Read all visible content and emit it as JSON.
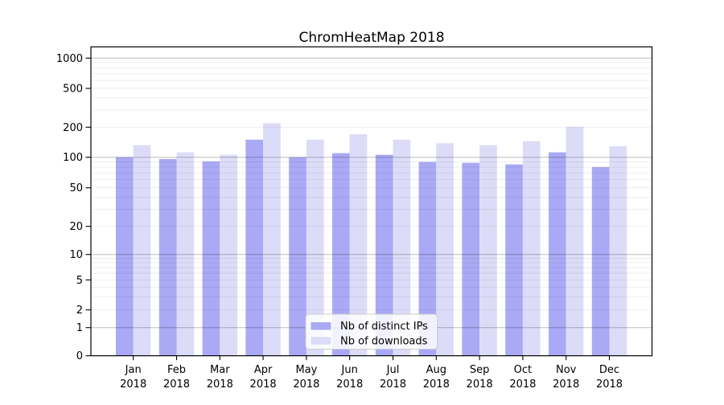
{
  "chart_data": {
    "type": "bar",
    "title": "ChromHeatMap 2018",
    "categories": [
      "Jan",
      "Feb",
      "Mar",
      "Apr",
      "May",
      "Jun",
      "Jul",
      "Aug",
      "Sep",
      "Oct",
      "Nov",
      "Dec"
    ],
    "x_year_label": "2018",
    "series": [
      {
        "name": "Nb of distinct IPs",
        "color": "#a9a9f5",
        "values": [
          100,
          96,
          91,
          150,
          100,
          110,
          106,
          90,
          88,
          85,
          112,
          80
        ]
      },
      {
        "name": "Nb of downloads",
        "color": "#dcdcf8",
        "values": [
          132,
          112,
          106,
          220,
          150,
          170,
          150,
          138,
          132,
          145,
          202,
          129
        ]
      }
    ],
    "y_ticks": [
      0,
      1,
      2,
      5,
      10,
      20,
      50,
      100,
      200,
      500,
      1000
    ],
    "y_tick_labels": [
      "0",
      "1",
      "2",
      "5",
      "10",
      "20",
      "50",
      "100",
      "200",
      "500",
      "1000"
    ],
    "yscale": "log-like (1-2-5 tick sequence with zero baseline)",
    "ylim": [
      0,
      1300
    ],
    "xlabel": "",
    "ylabel": "",
    "grid": "horizontal major and minor gridlines, drawn over bars",
    "legend": {
      "position": "lower-center",
      "entries": [
        "Nb of distinct IPs",
        "Nb of downloads"
      ]
    }
  },
  "colors": {
    "bar_distinct_ips": "#a9a9f5",
    "bar_downloads": "#dcdcf8",
    "major_grid": "rgba(0,0,0,0.26)",
    "minor_grid": "rgba(0,0,0,0.075)",
    "axis": "#000000",
    "legend_border": "#cccccc",
    "background": "#ffffff"
  }
}
